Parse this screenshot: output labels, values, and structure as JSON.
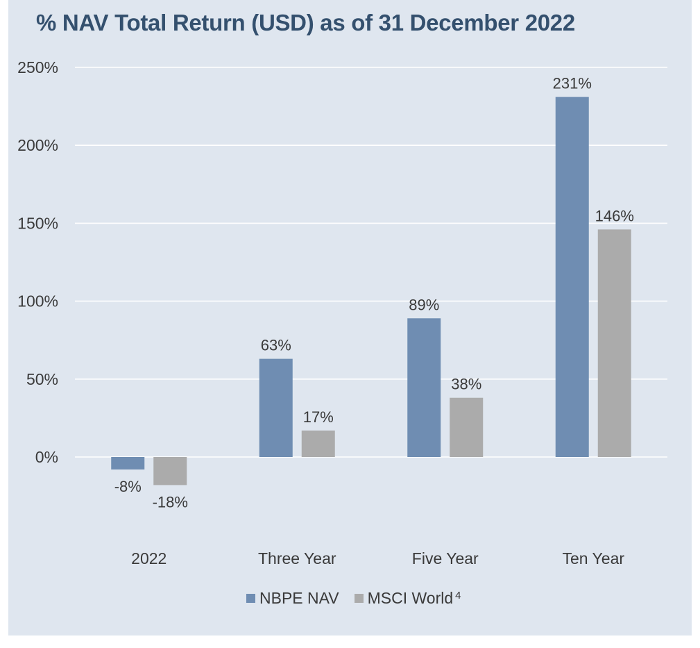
{
  "colors": {
    "background": "#dfe6ef",
    "gridline": "#ffffff",
    "title": "#34506e",
    "nbpe": "#6f8db2",
    "msci": "#ababab"
  },
  "legend": {
    "nbpe_label": "NBPE NAV",
    "msci_label": "MSCI World",
    "msci_footnote": "4"
  },
  "chart_data": {
    "type": "bar",
    "title": "% NAV Total Return (USD) as of 31 December 2022",
    "categories": [
      "2022",
      "Three Year",
      "Five Year",
      "Ten Year"
    ],
    "series": [
      {
        "name": "NBPE NAV",
        "values": [
          -8,
          63,
          89,
          231
        ],
        "labels": [
          "-8%",
          "63%",
          "89%",
          "231%"
        ]
      },
      {
        "name": "MSCI World",
        "values": [
          -18,
          17,
          38,
          146
        ],
        "labels": [
          "-18%",
          "17%",
          "38%",
          "146%"
        ]
      }
    ],
    "ylim": [
      -40,
      250
    ],
    "yticks": [
      0,
      50,
      100,
      150,
      200,
      250
    ],
    "ytick_labels": [
      "0%",
      "50%",
      "100%",
      "150%",
      "200%",
      "250%"
    ],
    "xlabel": "",
    "ylabel": "",
    "grid": true,
    "legend_position": "bottom"
  }
}
